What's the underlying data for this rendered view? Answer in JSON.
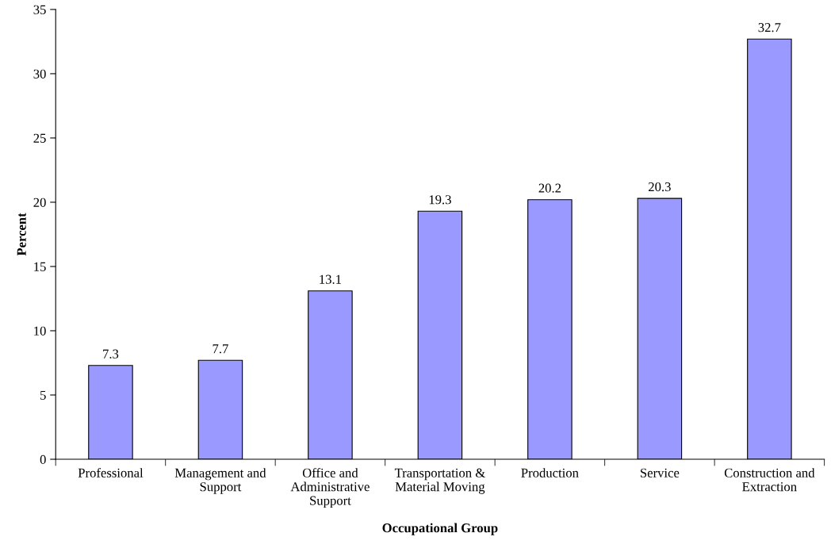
{
  "chart_data": {
    "type": "bar",
    "categories": [
      "Professional",
      "Management and\nSupport",
      "Office and\nAdministrative\nSupport",
      "Transportation &\nMaterial Moving",
      "Production",
      "Service",
      "Construction and\nExtraction"
    ],
    "values": [
      7.3,
      7.7,
      13.1,
      19.3,
      20.2,
      20.3,
      32.7
    ],
    "color": "#9999ff",
    "xlabel": "Occupational Group",
    "ylabel": "Percent",
    "ylim": [
      0,
      35
    ],
    "yticks": [
      0,
      5,
      10,
      15,
      20,
      25,
      30,
      35
    ],
    "data_labels": true,
    "grid": false
  }
}
